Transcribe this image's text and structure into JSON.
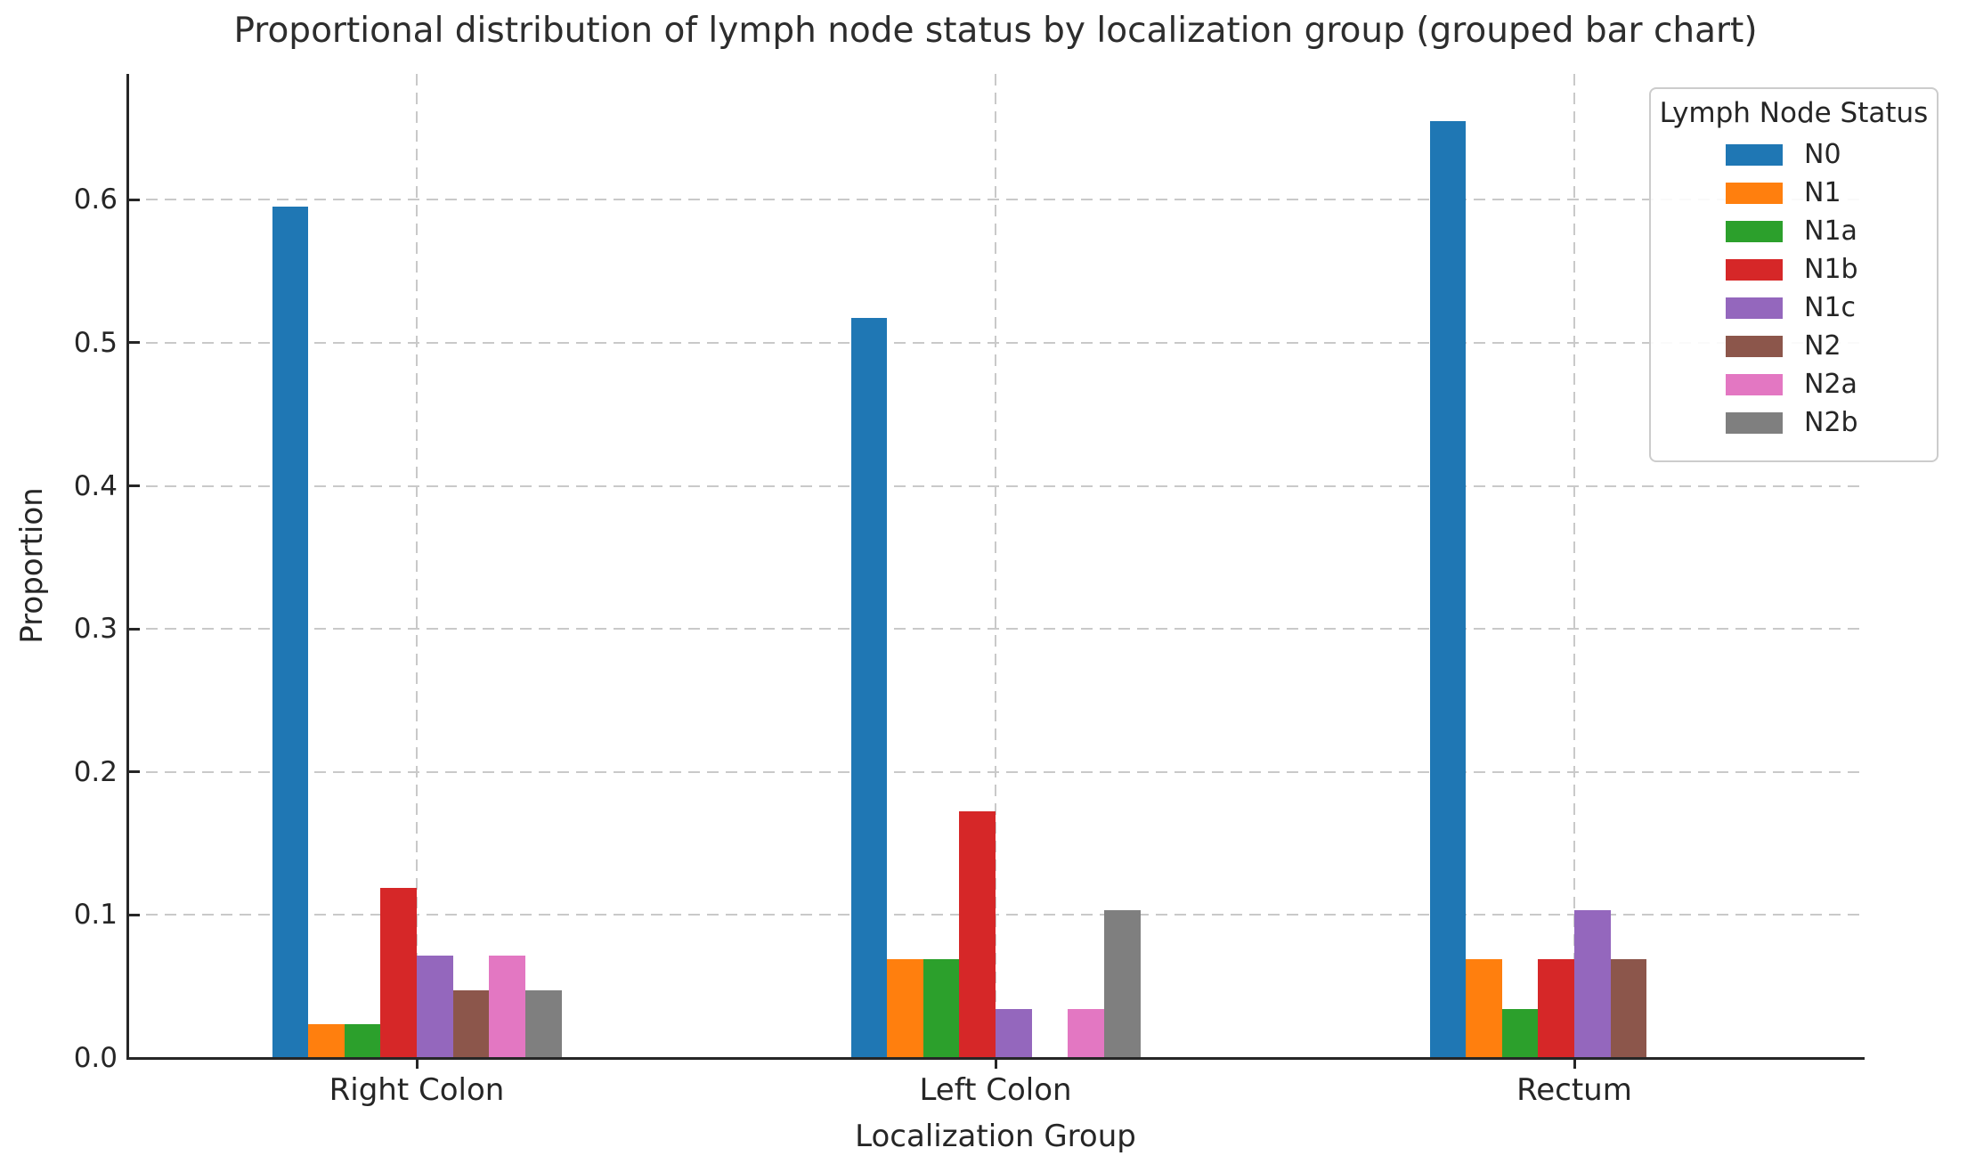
{
  "chart_data": {
    "type": "bar",
    "title": "Proportional distribution of lymph node status by localization group (grouped bar chart)",
    "xlabel": "Localization Group",
    "ylabel": "Proportion",
    "legend_title": "Lymph Node Status",
    "legend_position": "upper right",
    "grid": "dashed, both axes",
    "categories": [
      "Right Colon",
      "Left Colon",
      "Rectum"
    ],
    "series": [
      {
        "name": "N0",
        "color": "#1f77b4",
        "values": [
          0.5952,
          0.5172,
          0.6552
        ]
      },
      {
        "name": "N1",
        "color": "#ff7f0e",
        "values": [
          0.0238,
          0.069,
          0.069
        ]
      },
      {
        "name": "N1a",
        "color": "#2ca02c",
        "values": [
          0.0238,
          0.069,
          0.0345
        ]
      },
      {
        "name": "N1b",
        "color": "#d62728",
        "values": [
          0.119,
          0.1724,
          0.069
        ]
      },
      {
        "name": "N1c",
        "color": "#9467bd",
        "values": [
          0.0714,
          0.0345,
          0.1034
        ]
      },
      {
        "name": "N2",
        "color": "#8c564b",
        "values": [
          0.0476,
          0.0,
          0.069
        ]
      },
      {
        "name": "N2a",
        "color": "#e377c2",
        "values": [
          0.0714,
          0.0345,
          0.0
        ]
      },
      {
        "name": "N2b",
        "color": "#7f7f7f",
        "values": [
          0.0476,
          0.1034,
          0.0
        ]
      }
    ],
    "yticks": [
      0.0,
      0.1,
      0.2,
      0.3,
      0.4,
      0.5,
      0.6
    ],
    "ytick_labels": [
      "0.0",
      "0.1",
      "0.2",
      "0.3",
      "0.4",
      "0.5",
      "0.6"
    ],
    "ylim": [
      0,
      0.688
    ],
    "xlim_units": [
      -0.5,
      2.5
    ]
  }
}
